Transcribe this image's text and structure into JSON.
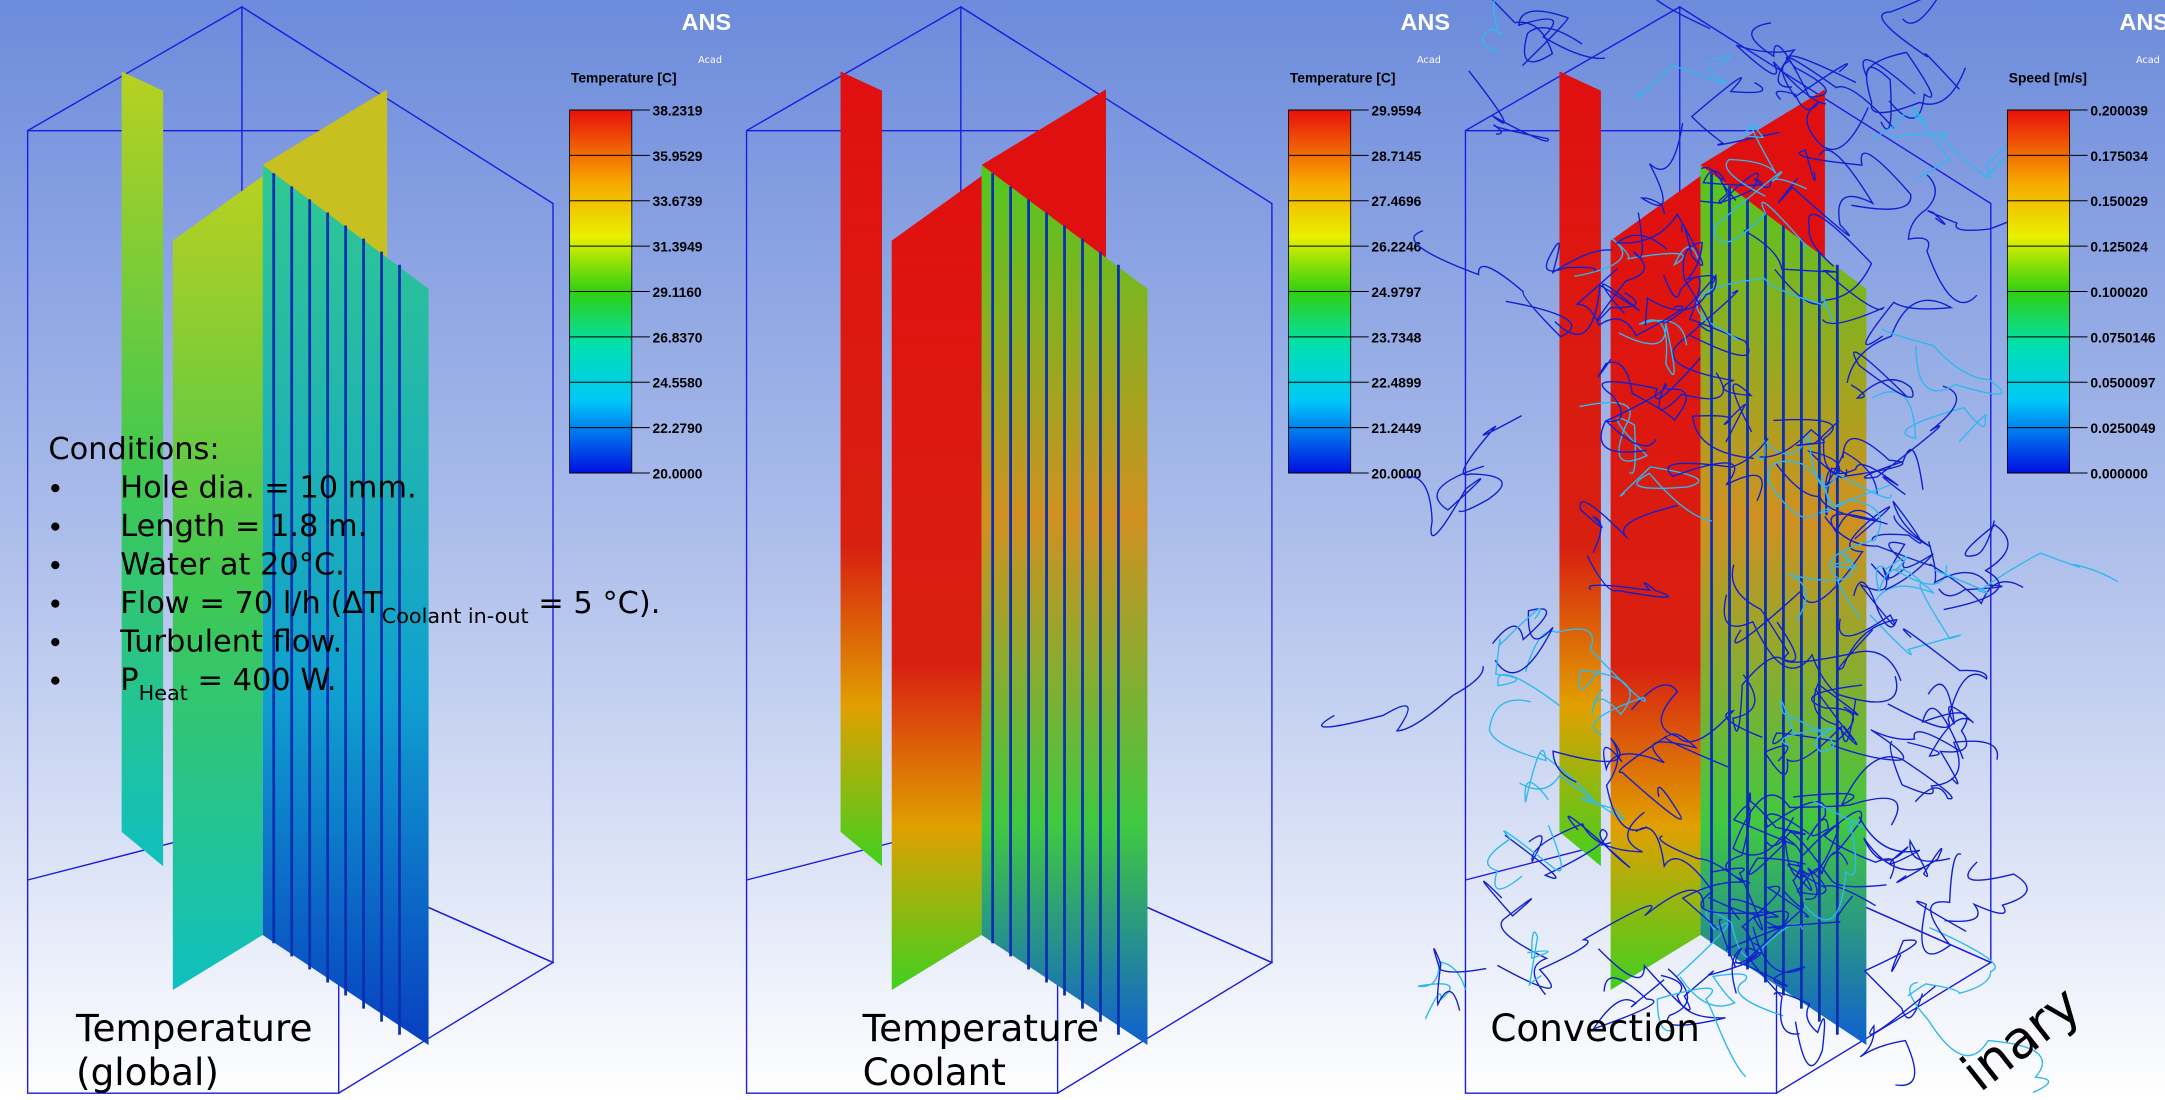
{
  "panels": [
    {
      "logo": "ANS",
      "logo_sub": "Acad",
      "legend": {
        "title": "Temperature [C]",
        "labels": [
          "38.2319",
          "35.9529",
          "33.6739",
          "31.3949",
          "29.1160",
          "26.8370",
          "24.5580",
          "22.2790",
          "20.0000"
        ]
      },
      "caption": [
        "Temperature",
        "(global)"
      ]
    },
    {
      "logo": "ANS",
      "logo_sub": "Acad",
      "legend": {
        "title": "Temperature [C]",
        "labels": [
          "29.9594",
          "28.7145",
          "27.4696",
          "26.2246",
          "24.9797",
          "23.7348",
          "22.4899",
          "21.2449",
          "20.0000"
        ]
      },
      "caption": [
        "Temperature",
        "Coolant"
      ]
    },
    {
      "logo": "ANS",
      "logo_sub": "Acad",
      "legend": {
        "title": "Speed [m/s]",
        "labels": [
          "0.200039",
          "0.175034",
          "0.150029",
          "0.125024",
          "0.100020",
          "0.0750146",
          "0.0500097",
          "0.0250049",
          "0.000000"
        ]
      },
      "caption": [
        "Convection"
      ]
    }
  ],
  "conditions": {
    "title": "Conditions:",
    "items": [
      [
        {
          "t": "Hole dia. = 10 mm."
        }
      ],
      [
        {
          "t": "Length = 1.8 m."
        }
      ],
      [
        {
          "t": "Water at 20°C."
        }
      ],
      [
        {
          "t": "Flow = 70 l/h (ΔT"
        },
        {
          "sub": "Coolant in-out"
        },
        {
          "t": " = 5 °C)."
        }
      ],
      [
        {
          "t": "Turbulent flow."
        }
      ],
      [
        {
          "t": "P"
        },
        {
          "sub": "Heat"
        },
        {
          "t": " = 400 W."
        }
      ]
    ]
  },
  "watermark": "inary"
}
